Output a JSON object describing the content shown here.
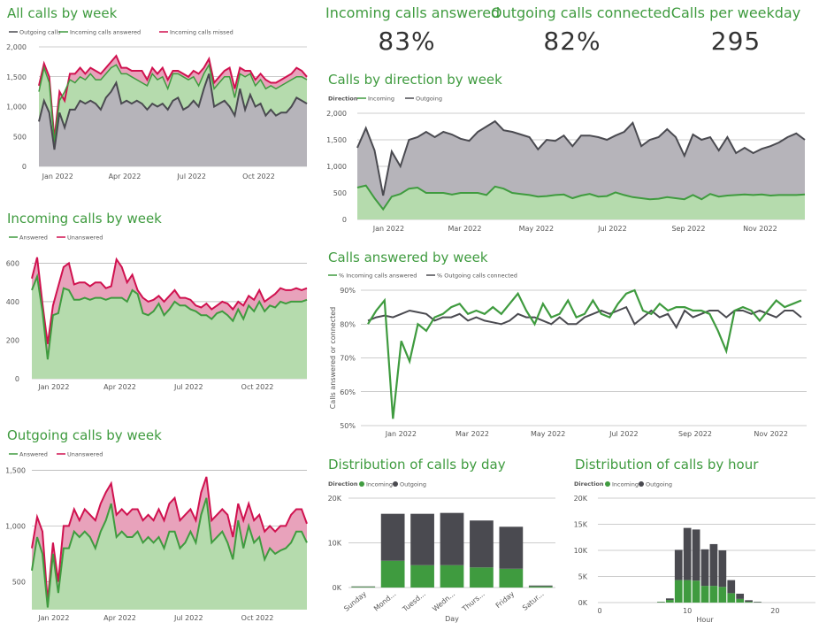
{
  "kpis": [
    {
      "label": "Incoming calls answered",
      "value": "83%"
    },
    {
      "label": "Outgoing calls connected",
      "value": "82%"
    },
    {
      "label": "Calls per weekday",
      "value": "295"
    }
  ],
  "colors": {
    "outgoing": "#4a4a50",
    "answered": "#3f9b3f",
    "missed": "#d0114f",
    "area_grey": "#b6b4ba",
    "area_green": "#b5dbad",
    "area_pink": "#e8a2bb"
  },
  "chart_data": [
    {
      "id": "all_calls",
      "type": "area",
      "title": "All calls by week",
      "legend": [
        "Outgoing calls",
        "Incoming calls answered",
        "Incoming calls missed"
      ],
      "x_ticks": [
        "Jan 2022",
        "Apr 2022",
        "Jul 2022",
        "Oct 2022"
      ],
      "y_ticks": [
        "0",
        "500",
        "1,000",
        "1,500",
        "2,000"
      ],
      "ylim": [
        0,
        2000
      ],
      "series": [
        {
          "name": "Outgoing calls",
          "values": [
            750,
            1100,
            900,
            280,
            900,
            650,
            950,
            950,
            1100,
            1050,
            1100,
            1050,
            950,
            1150,
            1250,
            1400,
            1050,
            1100,
            1050,
            1100,
            1050,
            950,
            1050,
            1000,
            1050,
            950,
            1100,
            1150,
            950,
            1000,
            1100,
            1000,
            1300,
            1550,
            1000,
            1050,
            1100,
            1000,
            850,
            1300,
            950,
            1200,
            1000,
            1050,
            850,
            950,
            850,
            900,
            900,
            1000,
            1150,
            1100,
            1050
          ]
        },
        {
          "name": "Incoming calls answered",
          "values": [
            1250,
            1650,
            1400,
            400,
            1100,
            1250,
            1450,
            1400,
            1500,
            1450,
            1550,
            1450,
            1450,
            1550,
            1650,
            1700,
            1550,
            1550,
            1500,
            1450,
            1400,
            1350,
            1550,
            1450,
            1500,
            1300,
            1550,
            1550,
            1500,
            1450,
            1500,
            1350,
            1550,
            1700,
            1300,
            1400,
            1500,
            1500,
            1150,
            1550,
            1500,
            1550,
            1350,
            1450,
            1300,
            1350,
            1300,
            1350,
            1400,
            1450,
            1500,
            1500,
            1450
          ]
        },
        {
          "name": "Incoming calls missed",
          "values": [
            1350,
            1720,
            1500,
            450,
            1250,
            1100,
            1550,
            1550,
            1650,
            1550,
            1650,
            1600,
            1550,
            1650,
            1750,
            1850,
            1650,
            1650,
            1600,
            1600,
            1600,
            1450,
            1650,
            1550,
            1650,
            1450,
            1600,
            1600,
            1550,
            1500,
            1600,
            1550,
            1650,
            1800,
            1400,
            1500,
            1600,
            1650,
            1300,
            1650,
            1600,
            1600,
            1450,
            1550,
            1450,
            1400,
            1400,
            1450,
            1500,
            1550,
            1650,
            1600,
            1500
          ]
        }
      ]
    },
    {
      "id": "incoming",
      "type": "area",
      "title": "Incoming calls by week",
      "legend": [
        "Answered",
        "Unanswered"
      ],
      "x_ticks": [
        "Jan 2022",
        "Apr 2022",
        "Jul 2022",
        "Oct 2022"
      ],
      "y_ticks": [
        "0",
        "200",
        "400",
        "600"
      ],
      "ylim": [
        0,
        680
      ],
      "series": [
        {
          "name": "Answered",
          "values": [
            460,
            530,
            350,
            100,
            330,
            340,
            470,
            460,
            410,
            410,
            420,
            410,
            420,
            420,
            410,
            420,
            420,
            420,
            400,
            460,
            440,
            340,
            330,
            350,
            390,
            330,
            360,
            400,
            380,
            380,
            360,
            350,
            330,
            330,
            310,
            340,
            350,
            330,
            300,
            360,
            310,
            380,
            350,
            400,
            350,
            380,
            370,
            400,
            390,
            400,
            400,
            400,
            410
          ]
        },
        {
          "name": "Unanswered",
          "values": [
            520,
            630,
            390,
            180,
            380,
            480,
            580,
            600,
            490,
            500,
            500,
            480,
            500,
            500,
            470,
            480,
            620,
            580,
            500,
            540,
            460,
            420,
            400,
            410,
            430,
            400,
            430,
            460,
            420,
            420,
            410,
            380,
            370,
            390,
            360,
            380,
            400,
            390,
            360,
            400,
            380,
            430,
            410,
            460,
            400,
            420,
            440,
            470,
            460,
            460,
            470,
            460,
            470
          ]
        }
      ]
    },
    {
      "id": "outgoing",
      "type": "area",
      "title": "Outgoing calls by week",
      "legend": [
        "Answered",
        "Unanswered"
      ],
      "x_ticks": [
        "Jan 2022",
        "Apr 2022",
        "Jul 2022",
        "Oct 2022"
      ],
      "y_ticks": [
        "500",
        "1,000",
        "1,500"
      ],
      "ylim": [
        250,
        1550
      ],
      "series": [
        {
          "name": "Answered",
          "values": [
            600,
            900,
            750,
            270,
            750,
            400,
            800,
            800,
            950,
            900,
            950,
            900,
            800,
            950,
            1050,
            1200,
            900,
            950,
            900,
            900,
            950,
            850,
            900,
            850,
            900,
            800,
            950,
            950,
            800,
            850,
            950,
            850,
            1100,
            1250,
            850,
            900,
            950,
            850,
            700,
            1050,
            800,
            1000,
            850,
            900,
            700,
            800,
            750,
            780,
            800,
            850,
            950,
            950,
            850
          ]
        },
        {
          "name": "Unanswered",
          "values": [
            800,
            1080,
            950,
            320,
            850,
            500,
            1000,
            1000,
            1150,
            1050,
            1150,
            1100,
            1050,
            1200,
            1300,
            1380,
            1100,
            1150,
            1100,
            1150,
            1150,
            1050,
            1100,
            1050,
            1150,
            1050,
            1200,
            1250,
            1050,
            1100,
            1150,
            1050,
            1300,
            1440,
            1050,
            1100,
            1150,
            1100,
            900,
            1200,
            1050,
            1200,
            1050,
            1100,
            950,
            1000,
            950,
            1000,
            1000,
            1100,
            1150,
            1150,
            1020
          ]
        }
      ]
    },
    {
      "id": "direction",
      "type": "area",
      "title": "Calls by direction by week",
      "legend_title": "Direction",
      "legend": [
        "Incoming",
        "Outgoing"
      ],
      "x_ticks": [
        "Jan 2022",
        "Mar 2022",
        "May 2022",
        "Jul 2022",
        "Sep 2022",
        "Nov 2022"
      ],
      "y_ticks": [
        "0",
        "500",
        "1,000",
        "1,500",
        "2,000"
      ],
      "ylim": [
        0,
        2000
      ],
      "series": [
        {
          "name": "Outgoing",
          "values": [
            1350,
            1720,
            1300,
            450,
            1280,
            1000,
            1500,
            1550,
            1650,
            1550,
            1650,
            1600,
            1520,
            1480,
            1650,
            1750,
            1850,
            1680,
            1650,
            1600,
            1550,
            1320,
            1500,
            1480,
            1580,
            1380,
            1580,
            1580,
            1550,
            1500,
            1580,
            1650,
            1820,
            1380,
            1500,
            1550,
            1700,
            1550,
            1200,
            1600,
            1500,
            1550,
            1300,
            1550,
            1250,
            1350,
            1250,
            1330,
            1380,
            1450,
            1550,
            1620,
            1500
          ]
        },
        {
          "name": "Incoming",
          "values": [
            600,
            640,
            400,
            190,
            430,
            480,
            580,
            600,
            500,
            500,
            500,
            470,
            500,
            500,
            500,
            460,
            620,
            580,
            500,
            480,
            460,
            430,
            440,
            460,
            470,
            400,
            450,
            480,
            430,
            440,
            510,
            460,
            420,
            400,
            380,
            390,
            420,
            400,
            380,
            460,
            380,
            480,
            430,
            450,
            460,
            470,
            460,
            470,
            450,
            460,
            460,
            460,
            470
          ]
        }
      ]
    },
    {
      "id": "answered",
      "type": "line",
      "title": "Calls answered by week",
      "legend": [
        "% Incoming calls answered",
        "% Outgoing calls connected"
      ],
      "ylabel": "Calls answered or connected",
      "x_ticks": [
        "Jan 2022",
        "Mar 2022",
        "May 2022",
        "Jul 2022",
        "Sep 2022",
        "Nov 2022"
      ],
      "y_ticks": [
        "50%",
        "60%",
        "70%",
        "80%",
        "90%"
      ],
      "ylim": [
        50,
        90
      ],
      "series": [
        {
          "name": "% Incoming calls answered",
          "values": [
            80,
            84,
            87,
            52,
            75,
            69,
            80,
            78,
            82,
            83,
            85,
            86,
            83,
            84,
            83,
            85,
            83,
            86,
            89,
            84,
            80,
            86,
            82,
            83,
            87,
            82,
            83,
            87,
            83,
            82,
            86,
            89,
            90,
            84,
            83,
            86,
            84,
            85,
            85,
            84,
            84,
            83,
            78,
            72,
            84,
            85,
            84,
            81,
            84,
            87,
            85,
            86,
            87
          ]
        },
        {
          "name": "% Outgoing calls connected",
          "values": [
            81,
            82,
            82.5,
            82,
            83,
            84,
            83.5,
            83,
            81,
            82,
            82,
            83,
            81,
            82,
            81,
            80.5,
            80,
            81,
            83,
            82,
            82,
            81,
            80,
            82,
            80,
            80,
            82,
            83,
            84,
            83,
            84,
            85,
            80,
            82,
            84,
            82,
            83,
            79,
            84,
            82,
            83,
            84,
            84,
            82,
            84,
            84,
            83,
            84,
            83,
            82,
            84,
            84,
            82
          ]
        }
      ]
    },
    {
      "id": "by_day",
      "type": "bar",
      "stacked": true,
      "title": "Distribution of calls by day",
      "legend_title": "Direction",
      "legend": [
        "Incoming",
        "Outgoing"
      ],
      "xlabel": "Day",
      "categories": [
        "Sunday",
        "Mond...",
        "Tuesd...",
        "Wedn...",
        "Thurs...",
        "Friday",
        "Satur..."
      ],
      "y_ticks": [
        "0K",
        "10K",
        "20K"
      ],
      "ylim": [
        0,
        20000
      ],
      "series": [
        {
          "name": "Incoming",
          "values": [
            150,
            6000,
            5000,
            5000,
            4500,
            4200,
            250
          ]
        },
        {
          "name": "Outgoing",
          "values": [
            100,
            10500,
            11500,
            11700,
            10500,
            9400,
            200
          ]
        }
      ]
    },
    {
      "id": "by_hour",
      "type": "bar",
      "stacked": true,
      "title": "Distribution of calls by hour",
      "legend_title": "Direction",
      "legend": [
        "Incoming",
        "Outgoing"
      ],
      "xlabel": "Hour",
      "x_ticks": [
        "0",
        "10",
        "20"
      ],
      "y_ticks": [
        "0K",
        "5K",
        "10K",
        "15K",
        "20K"
      ],
      "ylim": [
        0,
        20000
      ],
      "categories": [
        7,
        8,
        9,
        10,
        11,
        12,
        13,
        14,
        15,
        16,
        17,
        18
      ],
      "series": [
        {
          "name": "Incoming",
          "values": [
            100,
            500,
            4300,
            4300,
            4200,
            3200,
            3200,
            3000,
            1800,
            700,
            150,
            50
          ]
        },
        {
          "name": "Outgoing",
          "values": [
            50,
            300,
            5800,
            10000,
            9800,
            7000,
            8000,
            7000,
            2500,
            1000,
            300,
            100
          ]
        }
      ]
    }
  ]
}
